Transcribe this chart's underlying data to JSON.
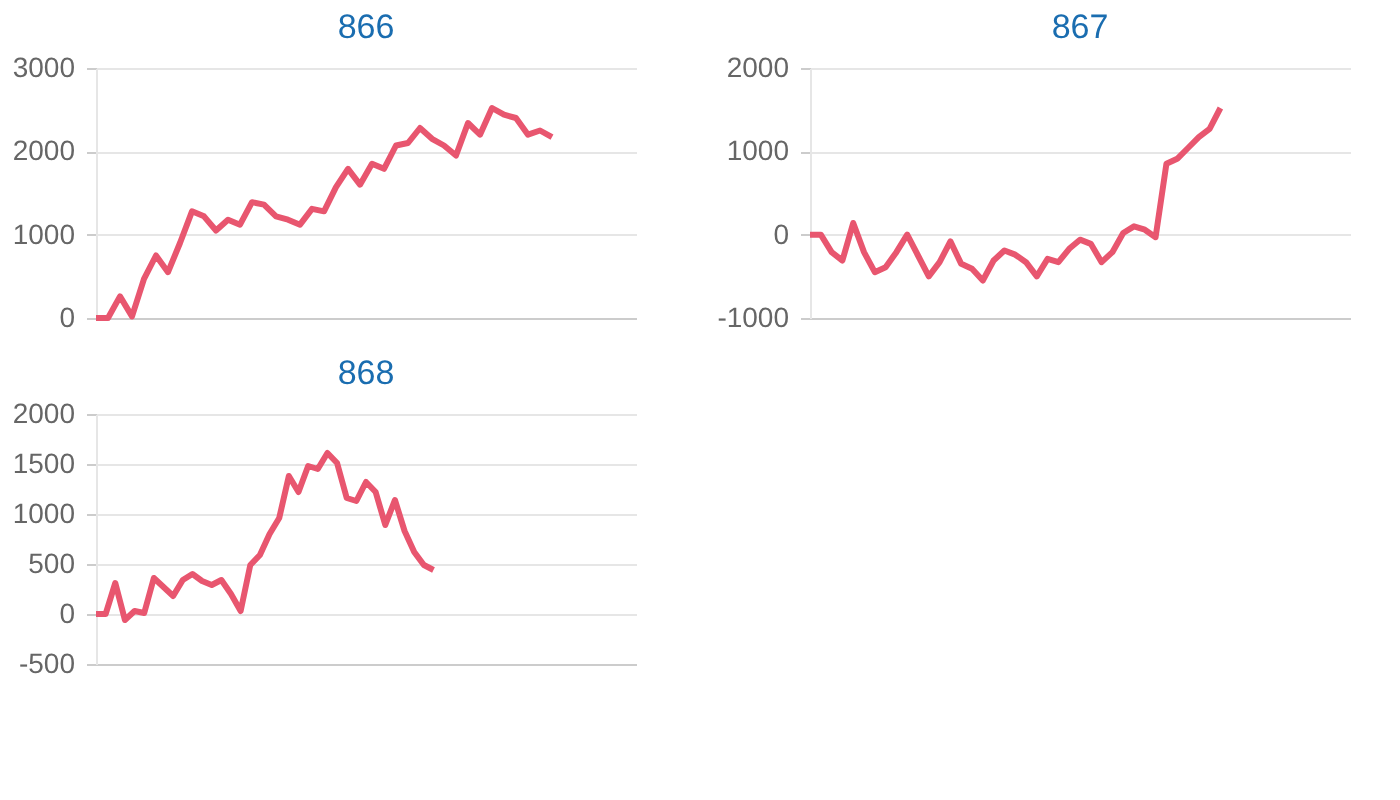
{
  "chart_data": [
    {
      "type": "line",
      "title": "866",
      "color": "#e8566f",
      "grid": "y",
      "tick_labels": "y",
      "ylim": [
        0,
        3000
      ],
      "yticks": [
        0,
        1000,
        2000,
        3000
      ],
      "categories": [
        null,
        null,
        null,
        null,
        null,
        null,
        null,
        null,
        null,
        null,
        null,
        null,
        null,
        null,
        null,
        null,
        null,
        null,
        null,
        null,
        null,
        null,
        null,
        null,
        null,
        null,
        null,
        null,
        null,
        null,
        null,
        null,
        null,
        null,
        null,
        null,
        null,
        null,
        null,
        null,
        null,
        null,
        null,
        null,
        null,
        null
      ],
      "values": [
        0,
        0,
        260,
        20,
        470,
        750,
        550,
        900,
        1280,
        1220,
        1050,
        1180,
        1120,
        1390,
        1360,
        1220,
        1180,
        1120,
        1310,
        1280,
        1570,
        1790,
        1600,
        1850,
        1790,
        2070,
        2100,
        2280,
        2150,
        2070,
        1950,
        2340,
        2200,
        2520,
        2440,
        2400,
        2200,
        2250,
        2170,
        null,
        null,
        null,
        null,
        null,
        null,
        null
      ]
    },
    {
      "type": "line",
      "title": "867",
      "color": "#e8566f",
      "grid": "y",
      "tick_labels": "y",
      "ylim": [
        -1000,
        2000
      ],
      "yticks": [
        -1000,
        0,
        1000,
        2000
      ],
      "categories": [
        null,
        null,
        null,
        null,
        null,
        null,
        null,
        null,
        null,
        null,
        null,
        null,
        null,
        null,
        null,
        null,
        null,
        null,
        null,
        null,
        null,
        null,
        null,
        null,
        null,
        null,
        null,
        null,
        null,
        null,
        null,
        null,
        null,
        null,
        null,
        null,
        null,
        null,
        null,
        null,
        null,
        null,
        null,
        null,
        null,
        null,
        null,
        null,
        null,
        null,
        null
      ],
      "values": [
        0,
        0,
        -210,
        -310,
        140,
        -210,
        -450,
        -390,
        -210,
        0,
        -250,
        -500,
        -330,
        -80,
        -350,
        -410,
        -550,
        -310,
        -190,
        -240,
        -330,
        -500,
        -290,
        -330,
        -170,
        -60,
        -110,
        -330,
        -210,
        20,
        100,
        60,
        -30,
        850,
        910,
        1040,
        1170,
        1270,
        1520,
        null,
        null,
        null,
        null,
        null,
        null,
        null,
        null,
        null,
        null,
        null,
        null
      ]
    },
    {
      "type": "line",
      "title": "868",
      "color": "#e8566f",
      "grid": "y",
      "tick_labels": "y",
      "ylim": [
        -500,
        2000
      ],
      "yticks": [
        -500,
        0,
        500,
        1000,
        1500,
        2000
      ],
      "categories": [
        null,
        null,
        null,
        null,
        null,
        null,
        null,
        null,
        null,
        null,
        null,
        null,
        null,
        null,
        null,
        null,
        null,
        null,
        null,
        null,
        null,
        null,
        null,
        null,
        null,
        null,
        null,
        null,
        null,
        null,
        null,
        null,
        null,
        null,
        null,
        null,
        null,
        null,
        null,
        null,
        null,
        null,
        null,
        null,
        null,
        null,
        null,
        null,
        null,
        null,
        null,
        null,
        null,
        null,
        null,
        null,
        null
      ],
      "values": [
        0,
        0,
        310,
        -60,
        30,
        10,
        360,
        270,
        180,
        340,
        400,
        330,
        290,
        340,
        200,
        30,
        490,
        590,
        800,
        960,
        1380,
        1220,
        1480,
        1450,
        1610,
        1510,
        1160,
        1130,
        1320,
        1220,
        890,
        1140,
        830,
        620,
        490,
        440,
        null,
        null,
        null,
        null,
        null,
        null,
        null,
        null,
        null,
        null,
        null,
        null,
        null,
        null,
        null,
        null,
        null,
        null,
        null,
        null,
        null
      ]
    }
  ]
}
